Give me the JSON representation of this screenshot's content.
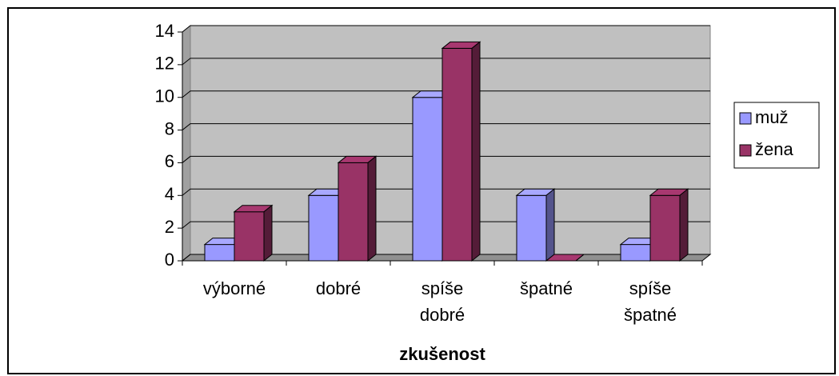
{
  "chart_data": {
    "type": "bar3d",
    "x_label": "zkušenost",
    "categories": [
      "výborné",
      "dobré",
      "spíše dobré",
      "špatné",
      "spíše špatné"
    ],
    "series": [
      {
        "name": "muž",
        "color": "#9999ff",
        "values": [
          1,
          4,
          10,
          4,
          1
        ]
      },
      {
        "name": "žena",
        "color": "#993366",
        "values": [
          3,
          6,
          13,
          0,
          4
        ]
      }
    ],
    "ylim": [
      0,
      14
    ],
    "yticks": [
      0,
      2,
      4,
      6,
      8,
      10,
      12,
      14
    ],
    "grid": true,
    "legend": "right"
  }
}
